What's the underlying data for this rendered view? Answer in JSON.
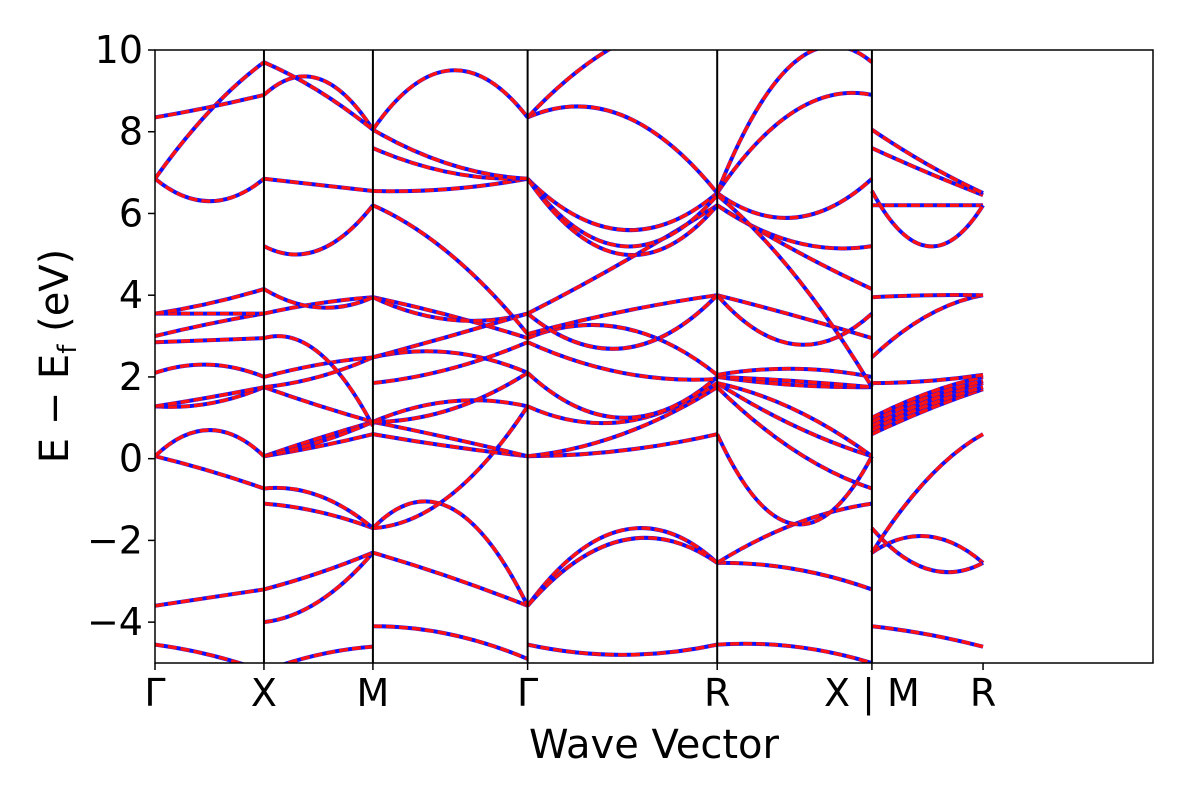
{
  "chart_data": {
    "type": "line",
    "title": "",
    "xlabel": "Wave Vector",
    "ylabel": {
      "main": "E − E",
      "sub": "f",
      "unit": " (eV)"
    },
    "ylim": [
      -5,
      10
    ],
    "yticks": [
      "−4",
      "−2",
      "0",
      "2",
      "4",
      "6",
      "8",
      "10"
    ],
    "ytick_values": [
      -4,
      -2,
      0,
      2,
      4,
      6,
      8,
      10
    ],
    "xlim": [
      0,
      4.58
    ],
    "kpoints": [
      {
        "label": "Γ",
        "x": 0
      },
      {
        "label": "X",
        "x": 0.5
      },
      {
        "label": "M",
        "x": 1.0
      },
      {
        "label": "Γ",
        "x": 1.71
      },
      {
        "label": "R",
        "x": 2.58
      },
      {
        "label": "X | M",
        "x": 3.29
      },
      {
        "label": "R",
        "x": 3.8
      }
    ],
    "segment_vlines": [
      0.5,
      1.0,
      1.71,
      2.58,
      3.29
    ],
    "grid": false,
    "legend": "none",
    "series_styles": [
      {
        "color": "#1111ff",
        "style": "solid"
      },
      {
        "color": "#ff1111",
        "style": "dashed"
      }
    ],
    "segments": [
      {
        "x": [
          0,
          0.5
        ],
        "bands": [
          [
            -4.55,
            -4.8,
            -5.2
          ],
          [
            -3.6,
            -3.4,
            -3.2
          ],
          [
            0.06,
            -0.3,
            -0.73
          ],
          [
            0.06,
            0.7,
            0.06
          ],
          [
            1.28,
            1.35,
            1.75
          ],
          [
            1.28,
            1.5,
            1.75
          ],
          [
            2.1,
            2.3,
            2.0
          ],
          [
            2.85,
            2.9,
            2.95
          ],
          [
            3.0,
            3.3,
            3.55
          ],
          [
            3.55,
            3.55,
            3.55
          ],
          [
            3.55,
            3.8,
            4.15
          ],
          [
            6.85,
            6.3,
            6.85
          ],
          [
            6.85,
            8.5,
            9.7
          ],
          [
            8.35,
            8.6,
            8.9
          ]
        ]
      },
      {
        "x": [
          0.5,
          1.0
        ],
        "bands": [
          [
            -5.2,
            -4.8,
            -4.6
          ],
          [
            -4.0,
            -3.5,
            -2.3
          ],
          [
            -3.2,
            -2.8,
            -2.3
          ],
          [
            -1.1,
            -1.3,
            -1.7
          ],
          [
            -0.73,
            -0.9,
            -1.7
          ],
          [
            0.06,
            0.3,
            0.6
          ],
          [
            0.06,
            0.5,
            0.9
          ],
          [
            0.06,
            0.4,
            0.9
          ],
          [
            1.75,
            1.3,
            0.9
          ],
          [
            1.75,
            2.0,
            2.48
          ],
          [
            2.0,
            2.3,
            2.48
          ],
          [
            2.95,
            2.6,
            0.8
          ],
          [
            3.55,
            3.8,
            3.95
          ],
          [
            4.15,
            3.7,
            3.95
          ],
          [
            5.2,
            5.1,
            6.2
          ],
          [
            6.85,
            6.7,
            6.55
          ],
          [
            8.9,
            9.3,
            8.05
          ],
          [
            9.7,
            9.0,
            8.05
          ]
        ]
      },
      {
        "x": [
          1.0,
          1.71
        ],
        "bands": [
          [
            -4.1,
            -4.3,
            -4.9
          ],
          [
            -2.3,
            -2.9,
            -3.6
          ],
          [
            -1.7,
            -1.2,
            -3.6
          ],
          [
            -1.7,
            -0.9,
            1.28
          ],
          [
            0.6,
            0.3,
            0.06
          ],
          [
            0.9,
            0.5,
            0.06
          ],
          [
            0.9,
            1.4,
            1.28
          ],
          [
            0.9,
            1.2,
            2.1
          ],
          [
            2.48,
            2.6,
            2.1
          ],
          [
            1.85,
            2.2,
            2.85
          ],
          [
            3.95,
            3.5,
            2.95
          ],
          [
            3.95,
            3.4,
            3.55
          ],
          [
            2.48,
            3.0,
            3.55
          ],
          [
            6.2,
            5.0,
            3.05
          ],
          [
            6.55,
            6.6,
            6.85
          ],
          [
            7.6,
            7.0,
            6.85
          ],
          [
            8.05,
            7.2,
            6.85
          ],
          [
            8.05,
            9.5,
            8.35
          ]
        ]
      },
      {
        "x": [
          1.71,
          2.58
        ],
        "bands": [
          [
            -4.55,
            -4.8,
            -4.55
          ],
          [
            -3.6,
            -1.75,
            -2.55
          ],
          [
            -3.6,
            -2.0,
            -2.55
          ],
          [
            0.06,
            0.2,
            0.6
          ],
          [
            0.06,
            0.6,
            1.75
          ],
          [
            1.28,
            0.9,
            1.85
          ],
          [
            2.1,
            1.0,
            2.0
          ],
          [
            2.85,
            2.1,
            1.95
          ],
          [
            2.95,
            3.2,
            2.05
          ],
          [
            3.05,
            3.6,
            4.0
          ],
          [
            3.55,
            2.7,
            4.0
          ],
          [
            3.55,
            4.8,
            6.2
          ],
          [
            6.85,
            5.6,
            6.5
          ],
          [
            6.85,
            5.2,
            6.45
          ],
          [
            6.85,
            5.0,
            6.2
          ],
          [
            8.35,
            8.4,
            6.5
          ],
          [
            8.35,
            10.2,
            10.8
          ]
        ]
      },
      {
        "x": [
          2.58,
          3.29
        ],
        "bands": [
          [
            -4.55,
            -4.6,
            -5.0
          ],
          [
            -2.55,
            -2.7,
            -3.2
          ],
          [
            -2.55,
            -1.6,
            -1.1
          ],
          [
            0.6,
            -1.6,
            0.06
          ],
          [
            1.75,
            0.2,
            -0.73
          ],
          [
            1.85,
            0.8,
            0.06
          ],
          [
            1.85,
            1.2,
            0.06
          ],
          [
            2.0,
            1.8,
            1.75
          ],
          [
            2.0,
            1.9,
            1.75
          ],
          [
            2.05,
            2.2,
            2.0
          ],
          [
            4.0,
            3.5,
            2.95
          ],
          [
            4.0,
            2.8,
            3.55
          ],
          [
            6.2,
            5.1,
            4.15
          ],
          [
            6.2,
            5.3,
            5.2
          ],
          [
            6.5,
            5.9,
            6.85
          ],
          [
            6.45,
            4.5,
            1.75
          ],
          [
            6.5,
            8.5,
            8.9
          ],
          [
            6.5,
            9.7,
            9.7
          ]
        ]
      },
      {
        "x": [
          3.29,
          3.8
        ],
        "bands": [
          [
            -4.1,
            -4.3,
            -4.6
          ],
          [
            -2.3,
            -1.9,
            -2.55
          ],
          [
            -1.7,
            -2.7,
            -2.55
          ],
          [
            -2.3,
            -0.5,
            0.6
          ],
          [
            0.6,
            1.2,
            1.7
          ],
          [
            0.7,
            1.3,
            1.75
          ],
          [
            0.8,
            1.4,
            1.85
          ],
          [
            0.9,
            1.5,
            1.9
          ],
          [
            1.0,
            1.6,
            2.0
          ],
          [
            1.85,
            1.9,
            2.05
          ],
          [
            2.48,
            3.5,
            4.0
          ],
          [
            3.95,
            4.0,
            4.0
          ],
          [
            6.2,
            6.2,
            6.2
          ],
          [
            6.55,
            5.2,
            6.2
          ],
          [
            7.6,
            7.0,
            6.45
          ],
          [
            8.05,
            7.2,
            6.5
          ]
        ]
      }
    ]
  }
}
